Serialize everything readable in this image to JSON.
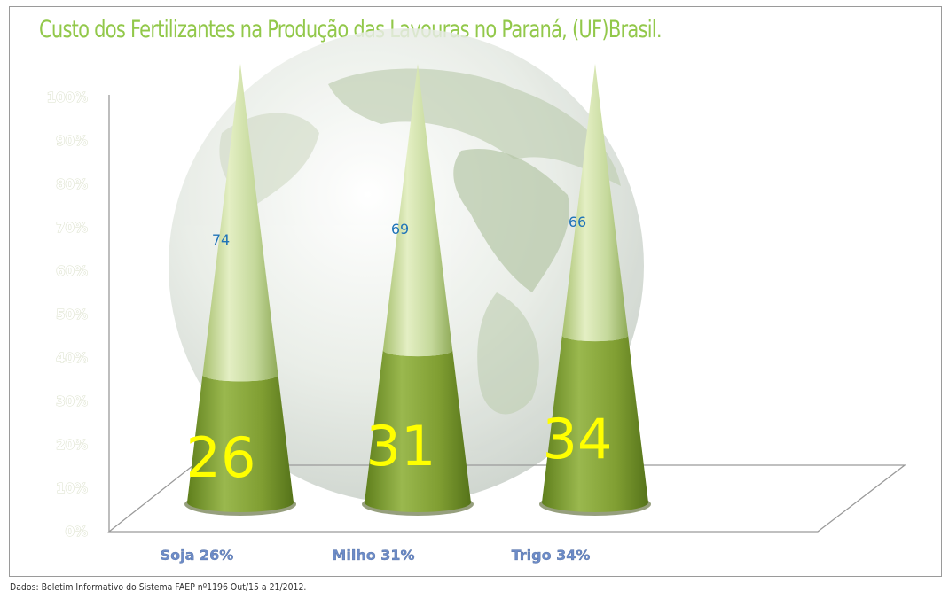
{
  "title": "Custo dos Fertilizantes  na Produção das Lavouras no Paraná, (UF)Brasil.",
  "source": "Dados: Boletim Informativo do Sistema FAEP nº1196 Out/15 a 21/2012.",
  "colors": {
    "title": "#92c84a",
    "cone_light": "#c9dd9c",
    "cone_dark": "#7a9a2c",
    "low_value_text": "#ffff00",
    "top_value_text": "#1f73b8",
    "category_label": "#6d8cc8"
  },
  "chart_data": {
    "type": "bar",
    "shape": "cone",
    "stacked_percent": true,
    "categories": [
      "Soja  26%",
      "Milho 31%",
      "Trigo 34%"
    ],
    "series": [
      {
        "values": [
          26,
          31,
          34
        ]
      },
      {
        "values": [
          74,
          69,
          66
        ]
      }
    ],
    "y_ticks": [
      "0%",
      "10%",
      "20%",
      "30%",
      "40%",
      "50%",
      "60%",
      "70%",
      "80%",
      "90%",
      "100%"
    ],
    "ylim": [
      0,
      100
    ],
    "grid": false,
    "legend": "none",
    "background": "globe"
  }
}
